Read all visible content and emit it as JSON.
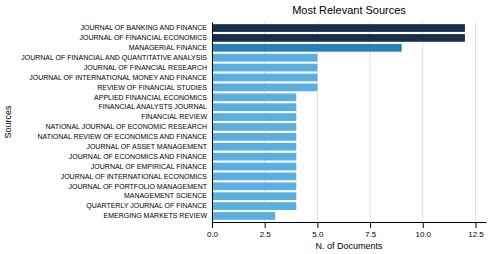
{
  "chart_data": {
    "type": "bar",
    "orientation": "horizontal",
    "title": "Most Relevant Sources",
    "xlabel": "N. of Documents",
    "ylabel": "Sources",
    "categories": [
      "EMERGING MARKETS REVIEW",
      "QUARTERLY JOURNAL OF FINANCE",
      "MANAGEMENT SCIENCE",
      "JOURNAL OF PORTFOLIO MANAGEMENT",
      "JOURNAL OF INTERNATIONAL ECONOMICS",
      "JOURNAL OF EMPIRICAL FINANCE",
      "JOURNAL OF ECONOMICS AND FINANCE",
      "JOURNAL OF ASSET MANAGEMENT",
      "NATIONAL REVIEW OF ECONOMICS AND FINANCE",
      "NATIONAL JOURNAL OF ECONOMIC RESEARCH",
      "FINANCIAL REVIEW",
      "FINANCIAL ANALYSTS JOURNAL",
      "APPLIED FINANCIAL ECONOMICS",
      "REVIEW OF FINANCIAL STUDIES",
      "JOURNAL OF INTERNATIONAL MONEY AND FINANCE",
      "JOURNAL OF FINANCIAL RESEARCH",
      "JOURNAL OF FINANCIAL AND QUANTITATIVE ANALYSIS",
      "MANAGERIAL FINANCE",
      "JOURNAL OF FINANCIAL ECONOMICS",
      "JOURNAL OF BANKING AND FINANCE"
    ],
    "values": [
      3,
      4,
      4,
      4,
      4,
      4,
      4,
      4,
      4,
      4,
      4,
      4,
      4,
      5,
      5,
      5,
      5,
      9,
      12,
      12
    ],
    "colors": [
      "#5aafe0",
      "#5aafe0",
      "#5aafe0",
      "#5aafe0",
      "#5aafe0",
      "#5aafe0",
      "#5aafe0",
      "#5aafe0",
      "#5aafe0",
      "#5aafe0",
      "#5aafe0",
      "#5aafe0",
      "#5aafe0",
      "#5aafe0",
      "#5aafe0",
      "#5aafe0",
      "#5aafe0",
      "#2980b9",
      "#1a2e4a",
      "#1a2e4a"
    ],
    "xlim": [
      0,
      13
    ],
    "xticks": [
      {
        "value": 0.0,
        "label": "0.0"
      },
      2.5,
      {
        "value": 5.0,
        "label": "5.0"
      },
      7.5,
      {
        "value": 10.0,
        "label": "10.0"
      },
      12.5
    ],
    "grid": true
  }
}
